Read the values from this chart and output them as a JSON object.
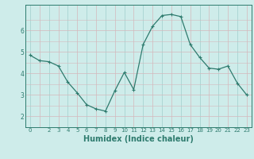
{
  "x": [
    0,
    1,
    2,
    3,
    4,
    5,
    6,
    7,
    8,
    9,
    10,
    11,
    12,
    13,
    14,
    15,
    16,
    17,
    18,
    19,
    20,
    21,
    22,
    23
  ],
  "y": [
    4.85,
    4.6,
    4.55,
    4.35,
    3.6,
    3.1,
    2.55,
    2.35,
    2.25,
    3.2,
    4.05,
    3.25,
    5.35,
    6.2,
    6.7,
    6.75,
    6.65,
    5.35,
    4.75,
    4.25,
    4.2,
    4.35,
    3.55,
    3.0
  ],
  "line_color": "#2e7b6e",
  "marker": "+",
  "marker_size": 3,
  "marker_linewidth": 0.8,
  "line_width": 0.9,
  "bg_color": "#ceecea",
  "grid_color_teal": "#9fcfcc",
  "grid_color_pink": "#d4b8bc",
  "xlabel": "Humidex (Indice chaleur)",
  "xlabel_fontsize": 7,
  "xlabel_color": "#2e7b6e",
  "ylabel_ticks": [
    2,
    3,
    4,
    5,
    6
  ],
  "xtick_labels": [
    "0",
    "",
    "2",
    "3",
    "4",
    "5",
    "6",
    "7",
    "8",
    "9",
    "10",
    "11",
    "12",
    "13",
    "14",
    "15",
    "16",
    "17",
    "18",
    "19",
    "20",
    "21",
    "22",
    "23"
  ],
  "ylim": [
    1.5,
    7.2
  ],
  "xlim": [
    -0.5,
    23.5
  ]
}
